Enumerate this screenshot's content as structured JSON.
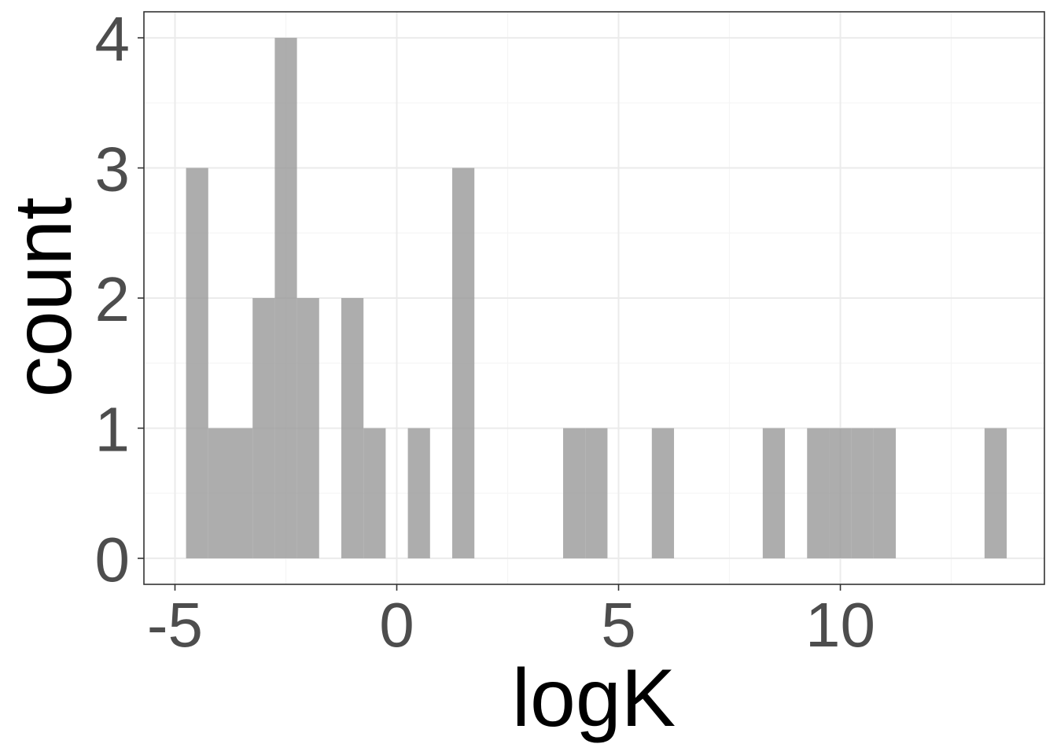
{
  "chart_data": {
    "type": "bar",
    "subtype": "histogram",
    "title": "",
    "xlabel": "logK",
    "ylabel": "count",
    "xlim": [
      -5.7,
      14.6
    ],
    "ylim": [
      -0.2,
      4.2
    ],
    "x_ticks": [
      -5,
      0,
      5,
      10
    ],
    "x_tick_labels": [
      "-5",
      "0",
      "5",
      "10"
    ],
    "y_ticks": [
      0,
      1,
      2,
      3,
      4
    ],
    "y_tick_labels": [
      "0",
      "1",
      "2",
      "3",
      "4"
    ],
    "x_minor_gridlines": [
      -2.5,
      2.5,
      7.5,
      12.5
    ],
    "y_minor_gridlines": [
      0.5,
      1.5,
      2.5,
      3.5
    ],
    "grid": true,
    "bin_width": 0.5,
    "bins": [
      {
        "x0": -4.75,
        "x1": -4.25,
        "count": 3
      },
      {
        "x0": -4.25,
        "x1": -3.75,
        "count": 1
      },
      {
        "x0": -3.75,
        "x1": -3.25,
        "count": 1
      },
      {
        "x0": -3.25,
        "x1": -2.75,
        "count": 2
      },
      {
        "x0": -2.75,
        "x1": -2.25,
        "count": 4
      },
      {
        "x0": -2.25,
        "x1": -1.75,
        "count": 2
      },
      {
        "x0": -1.25,
        "x1": -0.75,
        "count": 2
      },
      {
        "x0": -0.75,
        "x1": -0.25,
        "count": 1
      },
      {
        "x0": 0.25,
        "x1": 0.75,
        "count": 1
      },
      {
        "x0": 1.25,
        "x1": 1.75,
        "count": 3
      },
      {
        "x0": 3.75,
        "x1": 4.25,
        "count": 1
      },
      {
        "x0": 4.25,
        "x1": 4.75,
        "count": 1
      },
      {
        "x0": 5.75,
        "x1": 6.25,
        "count": 1
      },
      {
        "x0": 8.25,
        "x1": 8.75,
        "count": 1
      },
      {
        "x0": 9.25,
        "x1": 9.75,
        "count": 1
      },
      {
        "x0": 9.75,
        "x1": 10.25,
        "count": 1
      },
      {
        "x0": 10.25,
        "x1": 10.75,
        "count": 1
      },
      {
        "x0": 10.75,
        "x1": 11.25,
        "count": 1
      },
      {
        "x0": 13.25,
        "x1": 13.75,
        "count": 1
      }
    ],
    "colors": {
      "bar": "#999999",
      "panel_border": "#333333",
      "major_grid": "#ebebeb",
      "minor_grid": "#f5f5f5",
      "tick": "#333333"
    },
    "bar_opacity": 0.8
  }
}
